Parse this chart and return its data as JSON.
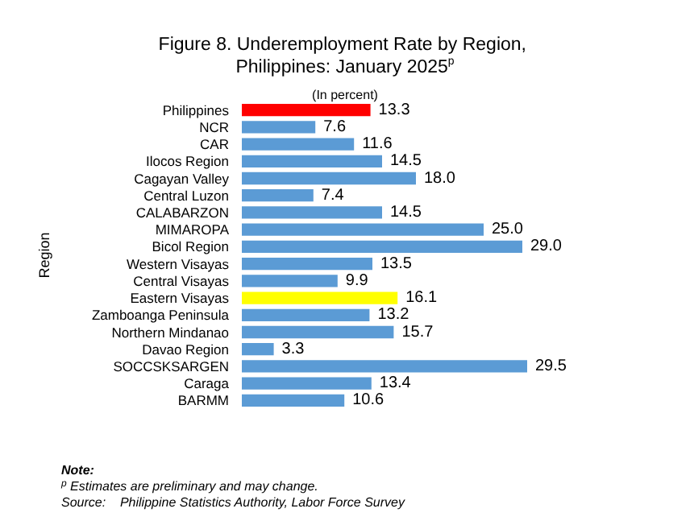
{
  "chart_data": {
    "type": "bar",
    "orientation": "horizontal",
    "title": "Figure 8. Underemployment Rate by Region, Philippines: January 2025$^{p}$",
    "subtitle": "(In percent)",
    "ylabel": "Region",
    "categories": [
      "Philippines",
      "NCR",
      "CAR",
      "Ilocos Region",
      "Cagayan Valley",
      "Central Luzon",
      "CALABARZON",
      "MIMAROPA",
      "Bicol Region",
      "Western Visayas",
      "Central Visayas",
      "Eastern Visayas",
      "Zamboanga Peninsula",
      "Northern Mindanao",
      "Davao Region",
      "SOCCSKSARGEN",
      "Caraga",
      "BARMM"
    ],
    "values": [
      13.3,
      7.6,
      11.6,
      14.5,
      18.0,
      7.4,
      14.5,
      25.0,
      29.0,
      13.5,
      9.9,
      16.1,
      13.2,
      15.7,
      3.3,
      29.5,
      13.4,
      10.6
    ],
    "value_labels": [
      "13.3",
      "7.6",
      "11.6",
      "14.5",
      "18.0",
      "7.4",
      "14.5",
      "25.0",
      "29.0",
      "13.5",
      "9.9",
      "16.1",
      "13.2",
      "15.7",
      "3.3",
      "29.5",
      "13.4",
      "10.6"
    ],
    "colors": [
      "#ff0000",
      "#5b9bd5",
      "#5b9bd5",
      "#5b9bd5",
      "#5b9bd5",
      "#5b9bd5",
      "#5b9bd5",
      "#5b9bd5",
      "#5b9bd5",
      "#5b9bd5",
      "#5b9bd5",
      "#ffff00",
      "#5b9bd5",
      "#5b9bd5",
      "#5b9bd5",
      "#5b9bd5",
      "#5b9bd5",
      "#5b9bd5"
    ],
    "annotations": [
      "Note:",
      "$^{p}$ Estimates are preliminary and may change.",
      "Source:    Philippine Statistics Authority, Labor Force Survey"
    ]
  }
}
